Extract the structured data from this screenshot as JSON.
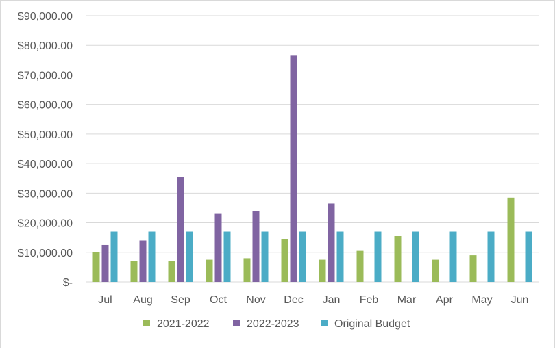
{
  "chart_data": {
    "type": "bar",
    "title": "",
    "xlabel": "",
    "ylabel": "",
    "ylim": [
      0,
      90000
    ],
    "ytick_values": [
      0,
      10000,
      20000,
      30000,
      40000,
      50000,
      60000,
      70000,
      80000,
      90000
    ],
    "ytick_labels": [
      "$-",
      "$10,000.00",
      "$20,000.00",
      "$30,000.00",
      "$40,000.00",
      "$50,000.00",
      "$60,000.00",
      "$70,000.00",
      "$80,000.00",
      "$90,000.00"
    ],
    "categories": [
      "Jul",
      "Aug",
      "Sep",
      "Oct",
      "Nov",
      "Dec",
      "Jan",
      "Feb",
      "Mar",
      "Apr",
      "May",
      "Jun"
    ],
    "legend_position": "bottom",
    "grid": true,
    "series": [
      {
        "name": "2021-2022",
        "color": "#9bbb59",
        "values": [
          10000,
          7000,
          7000,
          7500,
          8000,
          14500,
          7500,
          10500,
          15500,
          7500,
          9000,
          28500
        ]
      },
      {
        "name": "2022-2023",
        "color": "#8064a2",
        "values": [
          12500,
          14000,
          35500,
          23000,
          24000,
          76500,
          26500,
          null,
          null,
          null,
          null,
          null
        ]
      },
      {
        "name": "Original Budget",
        "color": "#4bacc6",
        "values": [
          17000,
          17000,
          17000,
          17000,
          17000,
          17000,
          17000,
          17000,
          17000,
          17000,
          17000,
          17000
        ]
      }
    ]
  }
}
